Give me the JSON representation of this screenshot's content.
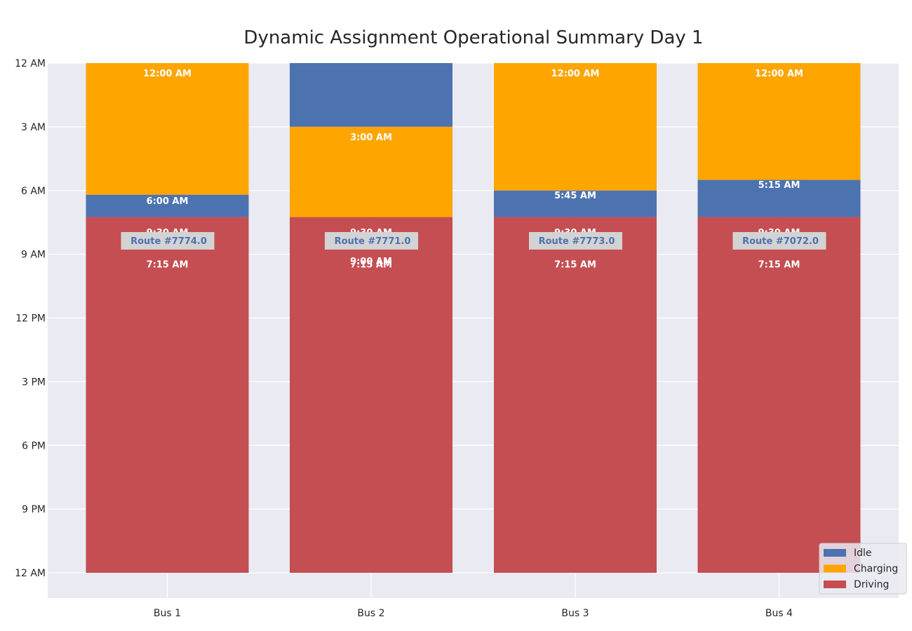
{
  "chart_data": {
    "type": "bar",
    "stacked": true,
    "title": "Dynamic Assignment Operational Summary Day 1",
    "xlabel": "",
    "ylabel": "",
    "y_axis": "time of day",
    "ylim_hours": [
      0,
      24
    ],
    "y_inverted": true,
    "y_ticks": [
      {
        "hour": 0,
        "label": "12 AM"
      },
      {
        "hour": 3,
        "label": "3 AM"
      },
      {
        "hour": 6,
        "label": "6 AM"
      },
      {
        "hour": 9,
        "label": "9 AM"
      },
      {
        "hour": 12,
        "label": "12 PM"
      },
      {
        "hour": 15,
        "label": "3 PM"
      },
      {
        "hour": 18,
        "label": "6 PM"
      },
      {
        "hour": 21,
        "label": "9 PM"
      },
      {
        "hour": 24,
        "label": "12 AM"
      }
    ],
    "grid": true,
    "legend_position": "bottom-right",
    "series": [
      {
        "name": "Idle",
        "color": "#4c72b0"
      },
      {
        "name": "Charging",
        "color": "#ffa500"
      },
      {
        "name": "Driving",
        "color": "#c44e52"
      }
    ],
    "categories": [
      "Bus 1",
      "Bus 2",
      "Bus 3",
      "Bus 4"
    ],
    "buses": [
      {
        "category": "Bus 1",
        "route": "Route #7774.0",
        "segments": [
          {
            "series": "Charging",
            "start_hour": 0,
            "end_hour": 6.2
          },
          {
            "series": "Idle",
            "start_hour": 6.2,
            "end_hour": 7.25
          },
          {
            "series": "Driving",
            "start_hour": 7.25,
            "end_hour": 24
          }
        ],
        "labels": [
          {
            "text": "12:00 AM",
            "hour": 0
          },
          {
            "text": "6:00 AM",
            "hour": 6
          },
          {
            "text": "9:30 AM",
            "hour": 7.5
          },
          {
            "text": "7:15 AM",
            "hour": 9
          }
        ]
      },
      {
        "category": "Bus 2",
        "route": "Route #7771.0",
        "segments": [
          {
            "series": "Idle",
            "start_hour": 0,
            "end_hour": 3
          },
          {
            "series": "Charging",
            "start_hour": 3,
            "end_hour": 7.25
          },
          {
            "series": "Driving",
            "start_hour": 7.25,
            "end_hour": 24
          }
        ],
        "labels": [
          {
            "text": "3:00 AM",
            "hour": 3
          },
          {
            "text": "9:30 AM",
            "hour": 7.5
          },
          {
            "text": "9:00 AM",
            "hour": 8.85
          },
          {
            "text": "7:15 AM",
            "hour": 9
          }
        ]
      },
      {
        "category": "Bus 3",
        "route": "Route #7773.0",
        "segments": [
          {
            "series": "Charging",
            "start_hour": 0,
            "end_hour": 6
          },
          {
            "series": "Idle",
            "start_hour": 6,
            "end_hour": 7.25
          },
          {
            "series": "Driving",
            "start_hour": 7.25,
            "end_hour": 24
          }
        ],
        "labels": [
          {
            "text": "12:00 AM",
            "hour": 0
          },
          {
            "text": "5:45 AM",
            "hour": 5.75
          },
          {
            "text": "9:30 AM",
            "hour": 7.5
          },
          {
            "text": "7:15 AM",
            "hour": 9
          }
        ]
      },
      {
        "category": "Bus 4",
        "route": "Route #7072.0",
        "segments": [
          {
            "series": "Charging",
            "start_hour": 0,
            "end_hour": 5.5
          },
          {
            "series": "Idle",
            "start_hour": 5.5,
            "end_hour": 7.25
          },
          {
            "series": "Driving",
            "start_hour": 7.25,
            "end_hour": 24
          }
        ],
        "labels": [
          {
            "text": "12:00 AM",
            "hour": 0
          },
          {
            "text": "5:15 AM",
            "hour": 5.25
          },
          {
            "text": "9:30 AM",
            "hour": 7.5
          },
          {
            "text": "7:15 AM",
            "hour": 9
          }
        ]
      }
    ]
  }
}
